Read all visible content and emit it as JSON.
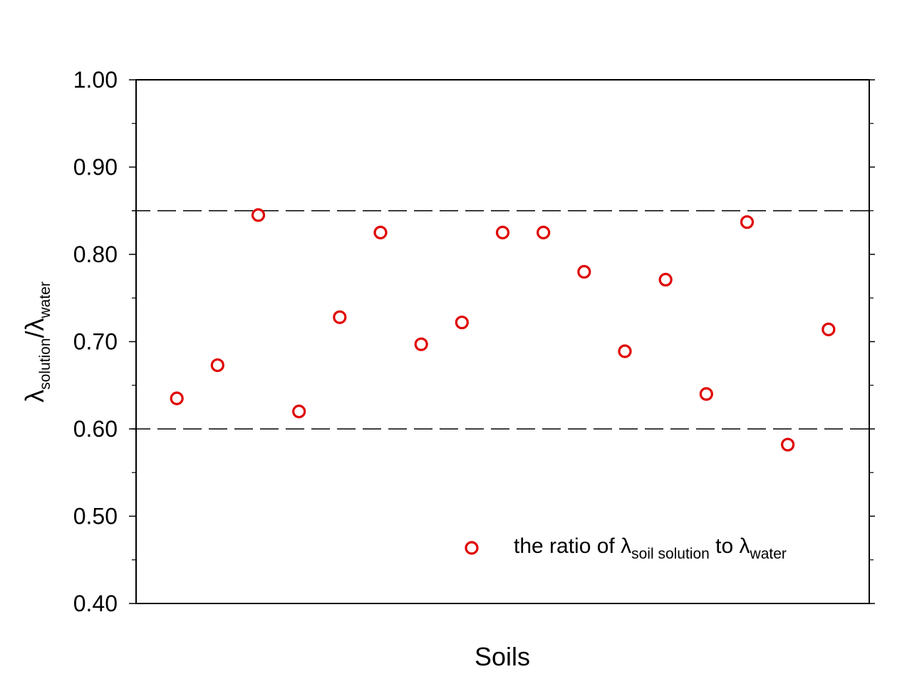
{
  "chart_data": {
    "type": "scatter",
    "xlabel": "Soils",
    "ylabel": {
      "lambda1": "λ",
      "sub1": "solution",
      "slash": "/",
      "lambda2": "λ",
      "sub2": "water"
    },
    "ylim": [
      0.4,
      1.0
    ],
    "yticks": [
      "0.40",
      "0.50",
      "0.60",
      "0.70",
      "0.80",
      "0.90",
      "1.00"
    ],
    "ytick_values": [
      0.4,
      0.5,
      0.6,
      0.7,
      0.8,
      0.9,
      1.0
    ],
    "y_minor_ticks": [
      0.45,
      0.55,
      0.65,
      0.75,
      0.85,
      0.95
    ],
    "xlim": [
      0,
      18
    ],
    "grid": false,
    "reference_lines": [
      0.85,
      0.6
    ],
    "legend_position": "lower-right",
    "series": [
      {
        "legend": {
          "prefix": "the ratio of ",
          "lambda1": "λ",
          "sub1": "soil solution",
          "middle": " to ",
          "lambda2": "λ",
          "sub2": "water"
        },
        "color": "#e00000",
        "marker": "open-circle",
        "x": [
          1,
          2,
          3,
          4,
          5,
          6,
          7,
          8,
          9,
          10,
          11,
          12,
          13,
          14,
          15,
          16,
          17
        ],
        "values": [
          0.635,
          0.673,
          0.845,
          0.62,
          0.728,
          0.825,
          0.697,
          0.722,
          0.825,
          0.825,
          0.78,
          0.689,
          0.771,
          0.64,
          0.837,
          0.582,
          0.714
        ]
      }
    ]
  }
}
